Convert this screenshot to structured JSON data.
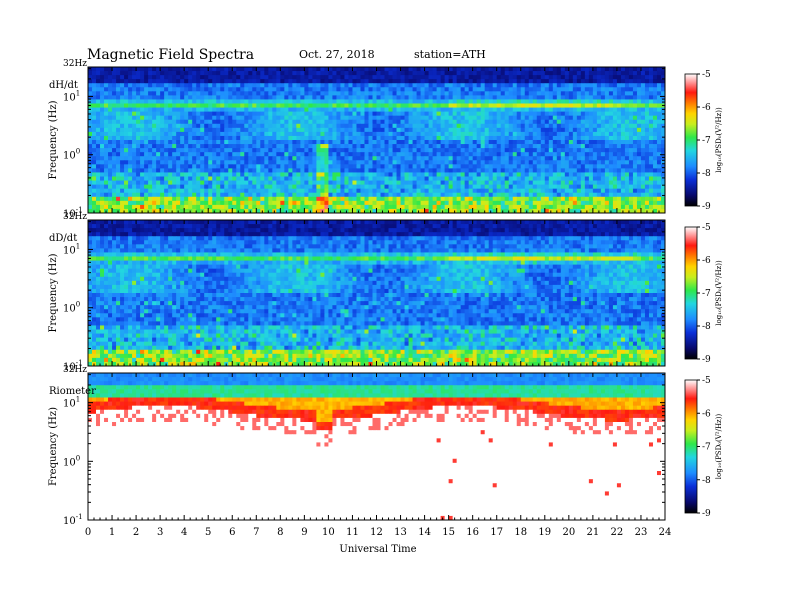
{
  "header": {
    "title": "Magnetic  Field  Spectra",
    "date": "Oct. 27, 2018",
    "station": "station=ATH"
  },
  "chart_data": [
    {
      "type": "heatmap",
      "panel_label": "dH/dt",
      "top_label": "32Hz",
      "ylabel": "Frequency  (Hz)",
      "y_scale": "log",
      "y_ticks": [
        {
          "base": "10",
          "exp": "1"
        },
        {
          "base": "10",
          "exp": "0"
        },
        {
          "base": "10",
          "exp": "-1"
        }
      ],
      "color_scale": "log10 PSD, -9 (dark blue) to -5 (white)",
      "colorbar": {
        "ticks": [
          "-5",
          "-6",
          "-7",
          "-8",
          "-9"
        ],
        "label": "log₁₀(PSD₀(V²/Hz))"
      },
      "features": [
        {
          "description": "narrow band near 7-8 Hz",
          "power_log10": -7.2
        },
        {
          "description": "broadband power near 0.1 Hz",
          "power_log10": -7.5
        },
        {
          "description": "vertical burst near 9.8 UT",
          "power_log10": -7.6
        }
      ]
    },
    {
      "type": "heatmap",
      "panel_label": "dD/dt",
      "top_label": "32Hz",
      "ylabel": "Frequency  (Hz)",
      "y_scale": "log",
      "y_ticks": [
        {
          "base": "10",
          "exp": "1"
        },
        {
          "base": "10",
          "exp": "0"
        },
        {
          "base": "10",
          "exp": "-1"
        }
      ],
      "color_scale": "log10 PSD, -9 (dark blue) to -5 (white)",
      "colorbar": {
        "ticks": [
          "-5",
          "-6",
          "-7",
          "-8",
          "-9"
        ],
        "label": "log₁₀(PSD₀(V²/Hz))"
      },
      "features": [
        {
          "description": "narrow band near 7-8 Hz",
          "power_log10": -7.3
        },
        {
          "description": "broadband power near 0.1 Hz",
          "power_log10": -7.6
        }
      ]
    },
    {
      "type": "heatmap",
      "panel_label": "Riometer",
      "top_label": "32Hz",
      "ylabel": "Frequency  (Hz)",
      "y_scale": "log",
      "y_ticks": [
        {
          "base": "10",
          "exp": "1"
        },
        {
          "base": "10",
          "exp": "0"
        },
        {
          "base": "10",
          "exp": "-1"
        }
      ],
      "color_scale": "log10 PSD, -9 (dark blue) to -5 (white)",
      "colorbar": {
        "ticks": [
          "-5",
          "-6",
          "-7",
          "-8",
          "-9"
        ],
        "label": "log₁₀(PSD₀(V²/Hz))"
      },
      "features": [
        {
          "description": "strong power above ~5 Hz",
          "power_log10": -6.0
        },
        {
          "description": "enhancement near 9.8 UT",
          "power_log10": -5.5
        }
      ]
    }
  ],
  "x_axis": {
    "label": "Universal Time",
    "ticks": [
      "0",
      "1",
      "2",
      "3",
      "4",
      "5",
      "6",
      "7",
      "8",
      "9",
      "10",
      "11",
      "12",
      "13",
      "14",
      "15",
      "16",
      "17",
      "18",
      "19",
      "20",
      "21",
      "22",
      "23",
      "24"
    ],
    "range": [
      0,
      24
    ]
  }
}
